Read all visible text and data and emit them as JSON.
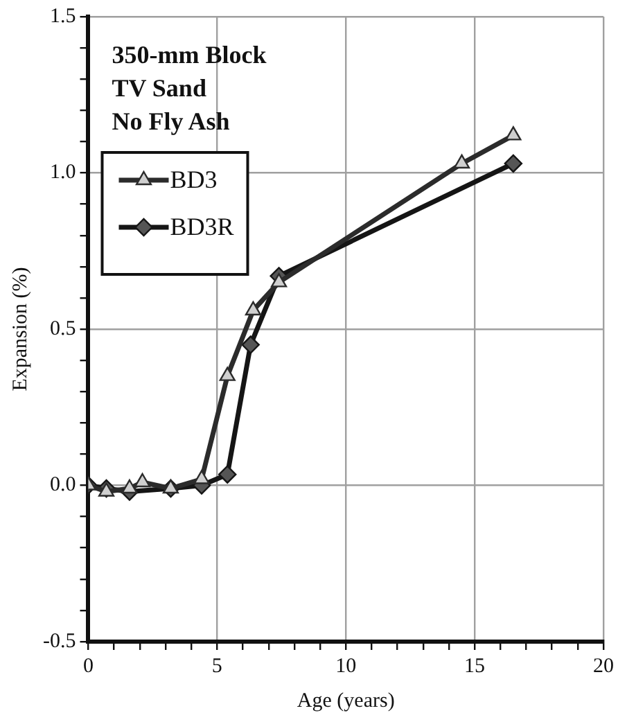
{
  "chart_data": {
    "type": "line",
    "xlabel": "Age (years)",
    "ylabel": "Expansion (%)",
    "annotations": [
      "350-mm Block",
      "TV Sand",
      "No Fly Ash"
    ],
    "series": [
      {
        "name": "BD3",
        "color": "#2b2b2b",
        "marker": "triangle",
        "x": [
          0,
          0.7,
          1.6,
          2.1,
          3.2,
          4.4,
          5.4,
          6.4,
          7.4,
          14.5,
          16.5
        ],
        "values": [
          0,
          -0.02,
          -0.01,
          0.01,
          -0.01,
          0.02,
          0.35,
          0.56,
          0.65,
          1.03,
          1.12
        ]
      },
      {
        "name": "BD3R",
        "color": "#151515",
        "marker": "diamond",
        "x": [
          0,
          0.7,
          1.6,
          3.2,
          4.4,
          5.4,
          6.3,
          7.4,
          16.5
        ],
        "values": [
          0,
          -0.01,
          -0.02,
          -0.01,
          0,
          0.035,
          0.45,
          0.67,
          1.03
        ]
      }
    ],
    "xlim": [
      0,
      20
    ],
    "xticks": [
      0,
      {
        "value": 1,
        "label": null
      },
      {
        "value": 2,
        "label": null
      },
      {
        "value": 3,
        "label": null
      },
      {
        "value": 4,
        "label": null
      },
      5,
      {
        "value": 6,
        "label": null
      },
      {
        "value": 7,
        "label": null
      },
      {
        "value": 8,
        "label": null
      },
      {
        "value": 9,
        "label": null
      },
      10,
      {
        "value": 11,
        "label": null
      },
      {
        "value": 12,
        "label": null
      },
      {
        "value": 13,
        "label": null
      },
      {
        "value": 14,
        "label": null
      },
      15,
      {
        "value": 16,
        "label": null
      },
      {
        "value": 17,
        "label": null
      },
      {
        "value": 18,
        "label": null
      },
      {
        "value": 19,
        "label": null
      },
      20
    ],
    "ylim": [
      -0.5,
      1.5
    ],
    "yticks": [
      {
        "value": -0.5,
        "label": "-0.5"
      },
      {
        "value": -0.4,
        "label": null
      },
      {
        "value": -0.3,
        "label": null
      },
      {
        "value": -0.2,
        "label": null
      },
      {
        "value": -0.1,
        "label": null
      },
      {
        "value": 0,
        "label": "0.0"
      },
      {
        "value": 0.1,
        "label": null
      },
      {
        "value": 0.2,
        "label": null
      },
      {
        "value": 0.3,
        "label": null
      },
      {
        "value": 0.4,
        "label": null
      },
      {
        "value": 0.5,
        "label": "0.5"
      },
      {
        "value": 0.6,
        "label": null
      },
      {
        "value": 0.7,
        "label": null
      },
      {
        "value": 0.8,
        "label": null
      },
      {
        "value": 0.9,
        "label": null
      },
      {
        "value": 1,
        "label": "1.0"
      },
      {
        "value": 1.1,
        "label": null
      },
      {
        "value": 1.2,
        "label": null
      },
      {
        "value": 1.3,
        "label": null
      },
      {
        "value": 1.4,
        "label": null
      },
      {
        "value": 1.5,
        "label": "1.5"
      }
    ],
    "grid": true,
    "legend": "top left",
    "line_style": "solid"
  }
}
